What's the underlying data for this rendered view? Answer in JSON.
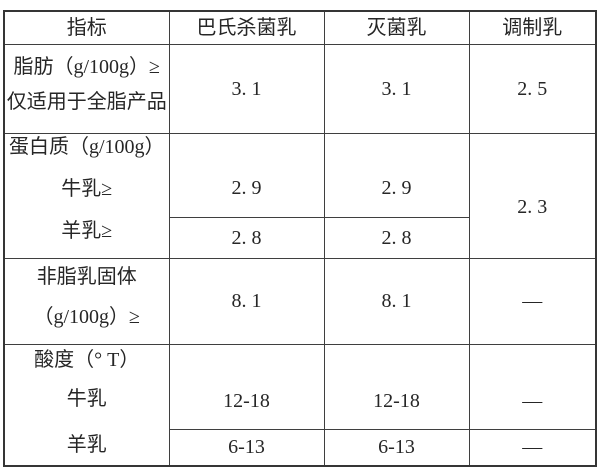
{
  "page": {
    "background_color": "#ffffff",
    "border_color": "#3f3f3f",
    "text_color": "#262626"
  },
  "table": {
    "header": [
      "指标",
      "巴氏杀菌乳",
      "灭菌乳",
      "调制乳"
    ],
    "rows": {
      "fat": {
        "label_lines": [
          "脂肪（g/100g）≥",
          "仅适用于全脂产品"
        ],
        "values": {
          "pasteurized": "3. 1",
          "sterilized": "3. 1",
          "modulated": "2. 5"
        }
      },
      "protein": {
        "label": "蛋白质（g/100g）",
        "cow": {
          "label": "牛乳≥",
          "pasteurized": "2. 9",
          "sterilized": "2. 9"
        },
        "goat": {
          "label": "羊乳≥",
          "pasteurized": "2. 8",
          "sterilized": "2. 8"
        },
        "modulated": "2. 3"
      },
      "nonfat_milk_solids": {
        "label_lines": [
          "非脂乳固体",
          "（g/100g）≥"
        ],
        "values": {
          "pasteurized": "8. 1",
          "sterilized": "8. 1",
          "modulated": "—"
        }
      },
      "acidity": {
        "label": "酸度（° T）",
        "cow": {
          "label": "牛乳",
          "pasteurized": "12-18",
          "sterilized": "12-18",
          "modulated": "—"
        },
        "goat": {
          "label": "羊乳",
          "pasteurized": "6-13",
          "sterilized": "6-13",
          "modulated": "—"
        }
      }
    }
  }
}
